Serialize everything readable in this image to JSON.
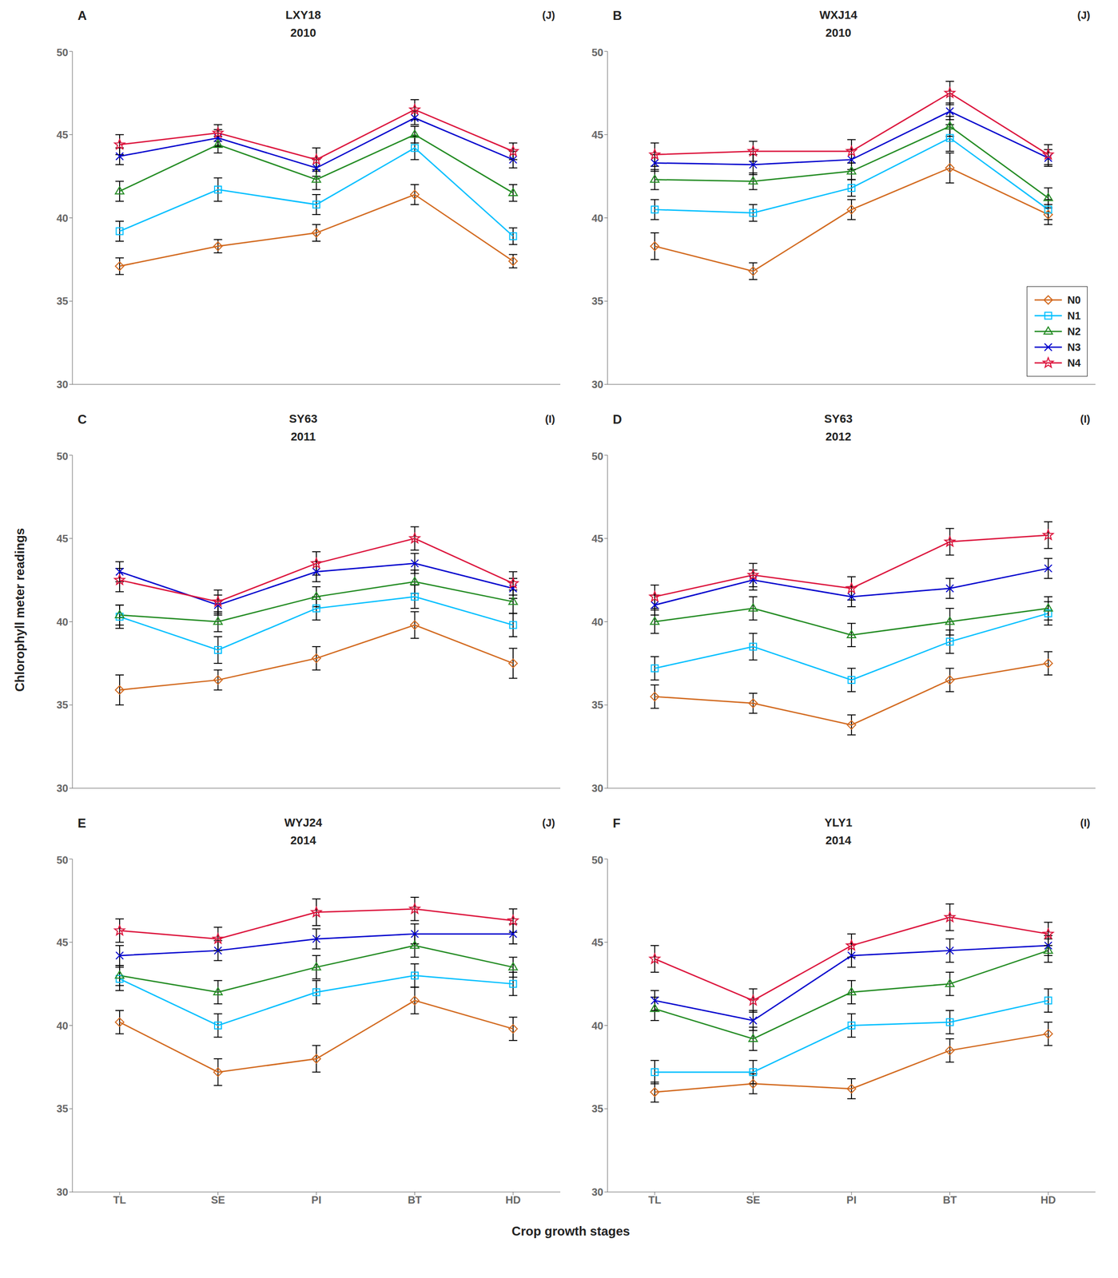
{
  "chart_data": [
    {
      "type": "line",
      "title": "LXY18",
      "subtitle": "2010",
      "annotations": [
        "A",
        "(J)"
      ],
      "ylabel": "Chlorophyll meter readings",
      "xlabel": "Crop growth stages",
      "categories": [
        "TL",
        "SE",
        "PI",
        "BT",
        "HD"
      ],
      "ylim": [
        30,
        50
      ],
      "yticks": [
        30,
        35,
        40,
        45,
        50
      ],
      "grid": false,
      "tick_labels": "y",
      "series": [
        {
          "name": "N0",
          "color": "#D2691E",
          "marker": "diamond",
          "values": [
            37.1,
            38.3,
            39.1,
            41.4,
            37.4
          ],
          "errors": [
            0.5,
            0.4,
            0.5,
            0.6,
            0.4
          ]
        },
        {
          "name": "N1",
          "color": "#00BFFF",
          "marker": "square",
          "values": [
            39.2,
            41.7,
            40.8,
            44.2,
            38.9
          ],
          "errors": [
            0.6,
            0.7,
            0.6,
            0.7,
            0.5
          ]
        },
        {
          "name": "N2",
          "color": "#228B22",
          "marker": "triangle",
          "values": [
            41.6,
            44.4,
            42.3,
            45.0,
            41.5
          ],
          "errors": [
            0.6,
            0.5,
            0.6,
            0.5,
            0.5
          ]
        },
        {
          "name": "N3",
          "color": "#0000CD",
          "marker": "x",
          "values": [
            43.7,
            44.8,
            43.0,
            46.0,
            43.5
          ],
          "errors": [
            0.5,
            0.5,
            0.5,
            0.4,
            0.5
          ]
        },
        {
          "name": "N4",
          "color": "#DC143C",
          "marker": "star",
          "values": [
            44.4,
            45.1,
            43.5,
            46.5,
            44.0
          ],
          "errors": [
            0.6,
            0.5,
            0.7,
            0.6,
            0.5
          ]
        }
      ]
    },
    {
      "type": "line",
      "title": "WXJ14",
      "subtitle": "2010",
      "annotations": [
        "B",
        "(J)"
      ],
      "legend": "lower right",
      "categories": [
        "TL",
        "SE",
        "PI",
        "BT",
        "HD"
      ],
      "ylim": [
        30,
        50
      ],
      "yticks": [
        30,
        35,
        40,
        45,
        50
      ],
      "grid": false,
      "tick_labels": "y",
      "series": [
        {
          "name": "N0",
          "color": "#D2691E",
          "marker": "diamond",
          "values": [
            38.3,
            36.8,
            40.5,
            43.0,
            40.2
          ],
          "errors": [
            0.8,
            0.5,
            0.6,
            0.9,
            0.6
          ]
        },
        {
          "name": "N1",
          "color": "#00BFFF",
          "marker": "square",
          "values": [
            40.5,
            40.3,
            41.8,
            44.8,
            40.5
          ],
          "errors": [
            0.6,
            0.5,
            0.5,
            0.8,
            0.6
          ]
        },
        {
          "name": "N2",
          "color": "#228B22",
          "marker": "triangle",
          "values": [
            42.3,
            42.2,
            42.8,
            45.5,
            41.2
          ],
          "errors": [
            0.6,
            0.5,
            0.5,
            0.6,
            0.6
          ]
        },
        {
          "name": "N3",
          "color": "#0000CD",
          "marker": "x",
          "values": [
            43.3,
            43.2,
            43.5,
            46.4,
            43.6
          ],
          "errors": [
            0.5,
            0.6,
            0.6,
            0.5,
            0.5
          ]
        },
        {
          "name": "N4",
          "color": "#DC143C",
          "marker": "star",
          "values": [
            43.8,
            44.0,
            44.0,
            47.5,
            43.8
          ],
          "errors": [
            0.7,
            0.6,
            0.7,
            0.7,
            0.6
          ]
        }
      ]
    },
    {
      "type": "line",
      "title": "SY63",
      "subtitle": "2011",
      "annotations": [
        "C",
        "(I)"
      ],
      "categories": [
        "TL",
        "SE",
        "PI",
        "BT",
        "HD"
      ],
      "ylim": [
        30,
        50
      ],
      "yticks": [
        30,
        35,
        40,
        45,
        50
      ],
      "grid": false,
      "tick_labels": "y",
      "series": [
        {
          "name": "N0",
          "color": "#D2691E",
          "marker": "diamond",
          "values": [
            35.9,
            36.5,
            37.8,
            39.8,
            37.5
          ],
          "errors": [
            0.9,
            0.6,
            0.7,
            0.8,
            0.9
          ]
        },
        {
          "name": "N1",
          "color": "#00BFFF",
          "marker": "square",
          "values": [
            40.3,
            38.3,
            40.8,
            41.5,
            39.8
          ],
          "errors": [
            0.7,
            0.8,
            0.7,
            0.7,
            0.7
          ]
        },
        {
          "name": "N2",
          "color": "#228B22",
          "marker": "triangle",
          "values": [
            40.4,
            40.0,
            41.5,
            42.4,
            41.2
          ],
          "errors": [
            0.6,
            0.6,
            0.6,
            0.7,
            0.7
          ]
        },
        {
          "name": "N3",
          "color": "#0000CD",
          "marker": "x",
          "values": [
            43.0,
            41.0,
            43.0,
            43.5,
            42.0
          ],
          "errors": [
            0.6,
            0.6,
            0.6,
            0.6,
            0.6
          ]
        },
        {
          "name": "N4",
          "color": "#DC143C",
          "marker": "star",
          "values": [
            42.5,
            41.2,
            43.5,
            45.0,
            42.3
          ],
          "errors": [
            0.7,
            0.7,
            0.7,
            0.7,
            0.7
          ]
        }
      ]
    },
    {
      "type": "line",
      "title": "SY63",
      "subtitle": "2012",
      "annotations": [
        "D",
        "(I)"
      ],
      "categories": [
        "TL",
        "SE",
        "PI",
        "BT",
        "HD"
      ],
      "ylim": [
        30,
        50
      ],
      "yticks": [
        30,
        35,
        40,
        45,
        50
      ],
      "grid": false,
      "tick_labels": "y",
      "series": [
        {
          "name": "N0",
          "color": "#D2691E",
          "marker": "diamond",
          "values": [
            35.5,
            35.1,
            33.8,
            36.5,
            37.5
          ],
          "errors": [
            0.7,
            0.6,
            0.6,
            0.7,
            0.7
          ]
        },
        {
          "name": "N1",
          "color": "#00BFFF",
          "marker": "square",
          "values": [
            37.2,
            38.5,
            36.5,
            38.8,
            40.5
          ],
          "errors": [
            0.7,
            0.8,
            0.7,
            0.7,
            0.7
          ]
        },
        {
          "name": "N2",
          "color": "#228B22",
          "marker": "triangle",
          "values": [
            40.0,
            40.8,
            39.2,
            40.0,
            40.8
          ],
          "errors": [
            0.7,
            0.7,
            0.7,
            0.8,
            0.7
          ]
        },
        {
          "name": "N3",
          "color": "#0000CD",
          "marker": "x",
          "values": [
            41.0,
            42.5,
            41.5,
            42.0,
            43.2
          ],
          "errors": [
            0.6,
            0.6,
            0.6,
            0.6,
            0.6
          ]
        },
        {
          "name": "N4",
          "color": "#DC143C",
          "marker": "star",
          "values": [
            41.5,
            42.8,
            42.0,
            44.8,
            45.2
          ],
          "errors": [
            0.7,
            0.7,
            0.7,
            0.8,
            0.8
          ]
        }
      ]
    },
    {
      "type": "line",
      "title": "WYJ24",
      "subtitle": "2014",
      "annotations": [
        "E",
        "(J)"
      ],
      "categories": [
        "TL",
        "SE",
        "PI",
        "BT",
        "HD"
      ],
      "ylim": [
        30,
        50
      ],
      "yticks": [
        30,
        35,
        40,
        45,
        50
      ],
      "grid": false,
      "series": [
        {
          "name": "N0",
          "color": "#D2691E",
          "marker": "diamond",
          "values": [
            40.2,
            37.2,
            38.0,
            41.5,
            39.8
          ],
          "errors": [
            0.7,
            0.8,
            0.8,
            0.8,
            0.7
          ]
        },
        {
          "name": "N1",
          "color": "#00BFFF",
          "marker": "square",
          "values": [
            42.8,
            40.0,
            42.0,
            43.0,
            42.5
          ],
          "errors": [
            0.7,
            0.7,
            0.7,
            0.7,
            0.7
          ]
        },
        {
          "name": "N2",
          "color": "#228B22",
          "marker": "triangle",
          "values": [
            43.0,
            42.0,
            43.5,
            44.8,
            43.5
          ],
          "errors": [
            0.6,
            0.7,
            0.7,
            0.7,
            0.6
          ]
        },
        {
          "name": "N3",
          "color": "#0000CD",
          "marker": "x",
          "values": [
            44.2,
            44.5,
            45.2,
            45.5,
            45.5
          ],
          "errors": [
            0.6,
            0.6,
            0.6,
            0.6,
            0.6
          ]
        },
        {
          "name": "N4",
          "color": "#DC143C",
          "marker": "star",
          "values": [
            45.7,
            45.2,
            46.8,
            47.0,
            46.3
          ],
          "errors": [
            0.7,
            0.7,
            0.8,
            0.7,
            0.7
          ]
        }
      ]
    },
    {
      "type": "line",
      "title": "YLY1",
      "subtitle": "2014",
      "annotations": [
        "F",
        "(I)"
      ],
      "categories": [
        "TL",
        "SE",
        "PI",
        "BT",
        "HD"
      ],
      "ylim": [
        30,
        50
      ],
      "yticks": [
        30,
        35,
        40,
        45,
        50
      ],
      "grid": false,
      "series": [
        {
          "name": "N0",
          "color": "#D2691E",
          "marker": "diamond",
          "values": [
            36.0,
            36.5,
            36.2,
            38.5,
            39.5
          ],
          "errors": [
            0.6,
            0.6,
            0.6,
            0.7,
            0.7
          ]
        },
        {
          "name": "N1",
          "color": "#00BFFF",
          "marker": "square",
          "values": [
            37.2,
            37.2,
            40.0,
            40.2,
            41.5
          ],
          "errors": [
            0.7,
            0.7,
            0.7,
            0.7,
            0.7
          ]
        },
        {
          "name": "N2",
          "color": "#228B22",
          "marker": "triangle",
          "values": [
            41.0,
            39.2,
            42.0,
            42.5,
            44.5
          ],
          "errors": [
            0.7,
            0.7,
            0.7,
            0.7,
            0.7
          ]
        },
        {
          "name": "N3",
          "color": "#0000CD",
          "marker": "x",
          "values": [
            41.5,
            40.3,
            44.2,
            44.5,
            44.8
          ],
          "errors": [
            0.6,
            0.6,
            0.7,
            0.7,
            0.6
          ]
        },
        {
          "name": "N4",
          "color": "#DC143C",
          "marker": "star",
          "values": [
            44.0,
            41.5,
            44.8,
            46.5,
            45.5
          ],
          "errors": [
            0.8,
            0.7,
            0.7,
            0.8,
            0.7
          ]
        }
      ]
    }
  ]
}
